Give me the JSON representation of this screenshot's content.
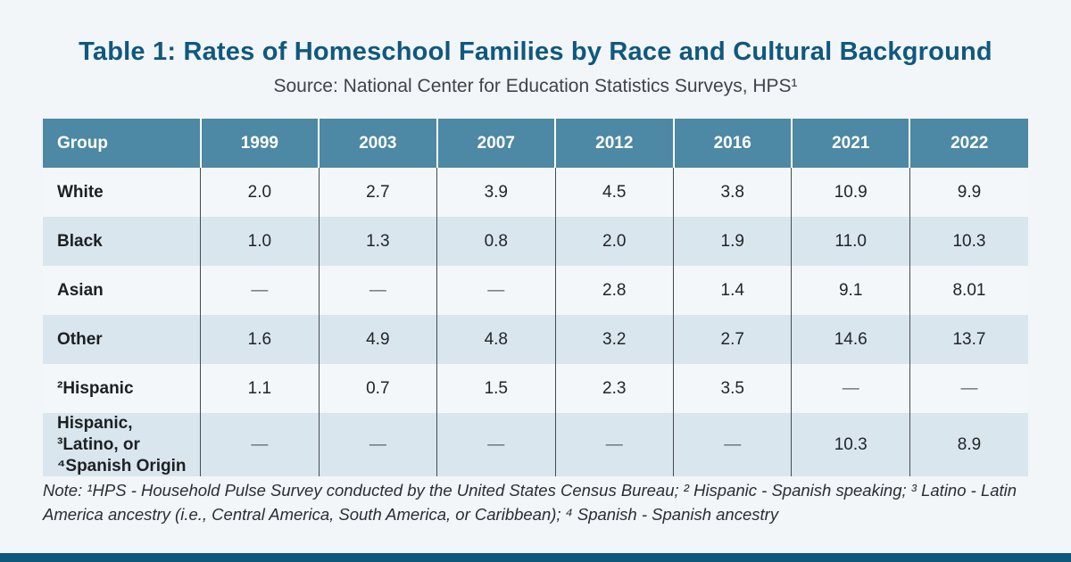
{
  "page": {
    "background_color": "#f2f6f9",
    "footer_bar_color": "#0e587c"
  },
  "colors": {
    "title_text": "#10587e",
    "header_row_bg": "#4d88a4",
    "header_row_text": "#ffffff",
    "row_light_bg": "#f3f7fa",
    "row_blue_bg": "#d9e6ed",
    "body_text": "#212529",
    "divider_dark": "#464b50",
    "missing_dash": "#5d6367"
  },
  "chart_data": {
    "type": "table",
    "title": "Table 1: Rates of Homeschool Families by Race and Cultural Background",
    "subtitle": "Source: National Center for Education Statistics Surveys, HPS¹",
    "columns": [
      "Group",
      "1999",
      "2003",
      "2007",
      "2012",
      "2016",
      "2021",
      "2022"
    ],
    "rows": [
      {
        "group": "White",
        "values": [
          "2.0",
          "2.7",
          "3.9",
          "4.5",
          "3.8",
          "10.9",
          "9.9"
        ]
      },
      {
        "group": "Black",
        "values": [
          "1.0",
          "1.3",
          "0.8",
          "2.0",
          "1.9",
          "11.0",
          "10.3"
        ]
      },
      {
        "group": "Asian",
        "values": [
          "—",
          "—",
          "—",
          "2.8",
          "1.4",
          "9.1",
          "8.01"
        ]
      },
      {
        "group": "Other",
        "values": [
          "1.6",
          "4.9",
          "4.8",
          "3.2",
          "2.7",
          "14.6",
          "13.7"
        ]
      },
      {
        "group": "²Hispanic",
        "values": [
          "1.1",
          "0.7",
          "1.5",
          "2.3",
          "3.5",
          "—",
          "—"
        ]
      },
      {
        "group": "Hispanic, ³Latino, or ⁴Spanish Origin",
        "values": [
          "—",
          "—",
          "—",
          "—",
          "—",
          "10.3",
          "8.9"
        ]
      }
    ],
    "missing_value_symbol": "—",
    "note": "Note: ¹HPS - Household Pulse Survey conducted by the United States Census Bureau; ² Hispanic - Spanish speaking; ³ Latino - Latin America ancestry (i.e., Central America, South America, or Caribbean); ⁴ Spanish - Spanish ancestry",
    "layout_hints": {
      "units": "percent of families homeschooling",
      "grid": "vertical dividers only, alternating row shading"
    }
  }
}
